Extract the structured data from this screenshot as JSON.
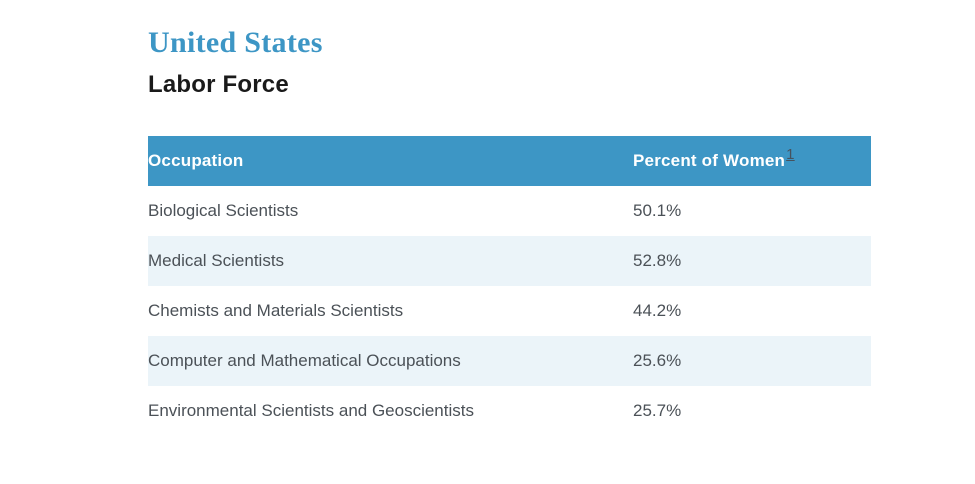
{
  "page": {
    "title": "United States",
    "subtitle": "Labor Force"
  },
  "table": {
    "header": {
      "occupation": "Occupation",
      "percent": "Percent of Women",
      "footnote_ref": "1"
    },
    "rows": [
      {
        "occupation": "Biological Scientists",
        "percent": "50.1%"
      },
      {
        "occupation": "Medical Scientists",
        "percent": "52.8%"
      },
      {
        "occupation": "Chemists and Materials Scientists",
        "percent": "44.2%"
      },
      {
        "occupation": "Computer and Mathematical Occupations",
        "percent": "25.6%"
      },
      {
        "occupation": "Environmental Scientists and Geoscientists",
        "percent": "25.7%"
      }
    ]
  },
  "colors": {
    "accent_blue": "#3D96C5",
    "header_text": "#FFFFFF",
    "row_alt": "#EBF4F9",
    "row_text": "#4B5157",
    "heading_dark": "#1A1A1A",
    "footnote": "#46525E"
  },
  "chart_data": {
    "type": "table",
    "title": "United States — Labor Force",
    "columns": [
      "Occupation",
      "Percent of Women"
    ],
    "categories": [
      "Biological Scientists",
      "Medical Scientists",
      "Chemists and Materials Scientists",
      "Computer and Mathematical Occupations",
      "Environmental Scientists and Geoscientists"
    ],
    "values": [
      50.1,
      52.8,
      44.2,
      25.6,
      25.7
    ],
    "unit": "%",
    "footnote_reference": "1"
  }
}
